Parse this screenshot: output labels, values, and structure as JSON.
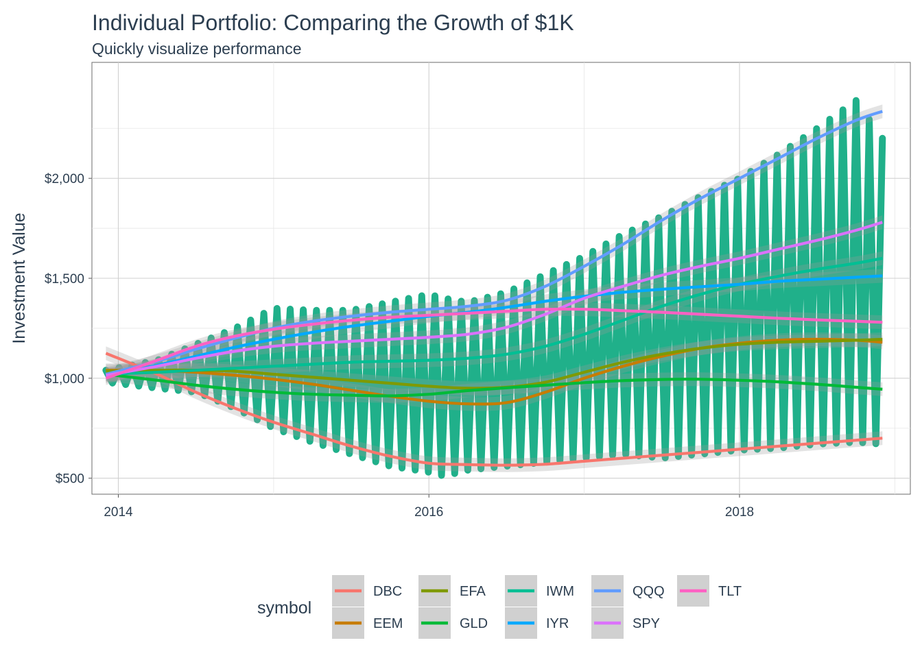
{
  "chart_data": {
    "type": "line",
    "title": "Individual Portfolio: Comparing the Growth of $1K",
    "subtitle": "Quickly visualize performance",
    "xlabel": "",
    "ylabel": "Investment Value",
    "xlim": [
      2013.83,
      2019.1
    ],
    "ylim": [
      420,
      2580
    ],
    "x_ticks": [
      {
        "value": 2014,
        "label": "2014"
      },
      {
        "value": 2016,
        "label": "2016"
      },
      {
        "value": 2018,
        "label": "2018"
      }
    ],
    "y_ticks": [
      {
        "value": 500,
        "label": "$500"
      },
      {
        "value": 1000,
        "label": "$1,000"
      },
      {
        "value": 1500,
        "label": "$1,500"
      },
      {
        "value": 2000,
        "label": "$2,000"
      }
    ],
    "grid": true,
    "legend_title": "symbol",
    "legend_position": "bottom",
    "raw_series_color": "#20b08a",
    "raw_envelope": {
      "x": [
        2013.92,
        2014.25,
        2014.5,
        2014.75,
        2015.0,
        2015.25,
        2015.5,
        2015.75,
        2016.0,
        2016.1,
        2016.25,
        2016.5,
        2016.75,
        2017.0,
        2017.25,
        2017.5,
        2017.75,
        2018.0,
        2018.25,
        2018.5,
        2018.75,
        2018.92
      ],
      "upper": [
        1040,
        1090,
        1170,
        1250,
        1350,
        1340,
        1340,
        1380,
        1420,
        1400,
        1380,
        1430,
        1520,
        1610,
        1720,
        1810,
        1910,
        2000,
        2120,
        2250,
        2390,
        2200
      ],
      "lower": [
        980,
        950,
        930,
        850,
        750,
        680,
        620,
        560,
        530,
        510,
        540,
        560,
        580,
        600,
        620,
        600,
        620,
        640,
        650,
        670,
        680,
        670
      ]
    },
    "series": [
      {
        "name": "DBC",
        "color": "#f8766d",
        "x": [
          2013.92,
          2014.25,
          2014.5,
          2014.75,
          2015.0,
          2015.25,
          2015.5,
          2015.75,
          2016.0,
          2016.25,
          2016.5,
          2016.75,
          2017.0,
          2017.25,
          2017.5,
          2017.75,
          2018.0,
          2018.25,
          2018.5,
          2018.75,
          2018.92
        ],
        "y": [
          1125,
          1020,
          930,
          850,
          780,
          720,
          660,
          610,
          575,
          568,
          565,
          570,
          585,
          600,
          615,
          630,
          645,
          660,
          675,
          690,
          700
        ]
      },
      {
        "name": "EEM",
        "color": "#c77c00",
        "x": [
          2013.92,
          2014.25,
          2014.5,
          2014.75,
          2015.0,
          2015.25,
          2015.5,
          2015.75,
          2016.0,
          2016.25,
          2016.5,
          2016.75,
          2017.0,
          2017.25,
          2017.5,
          2017.75,
          2018.0,
          2018.25,
          2018.5,
          2018.75,
          2018.92
        ],
        "y": [
          1040,
          1038,
          1030,
          1015,
          995,
          970,
          940,
          910,
          885,
          872,
          878,
          930,
          1000,
          1060,
          1110,
          1150,
          1175,
          1190,
          1195,
          1190,
          1180
        ]
      },
      {
        "name": "EFA",
        "color": "#7f9a00",
        "x": [
          2013.92,
          2014.25,
          2014.5,
          2014.75,
          2015.0,
          2015.25,
          2015.5,
          2015.75,
          2016.0,
          2016.25,
          2016.5,
          2016.75,
          2017.0,
          2017.25,
          2017.5,
          2017.75,
          2018.0,
          2018.25,
          2018.5,
          2018.75,
          2018.92
        ],
        "y": [
          1035,
          1040,
          1040,
          1035,
          1020,
          1005,
          990,
          975,
          960,
          950,
          955,
          980,
          1030,
          1080,
          1120,
          1150,
          1170,
          1180,
          1185,
          1190,
          1195
        ]
      },
      {
        "name": "GLD",
        "color": "#00ba38",
        "x": [
          2013.92,
          2014.25,
          2014.5,
          2014.75,
          2015.0,
          2015.25,
          2015.5,
          2015.75,
          2016.0,
          2016.25,
          2016.5,
          2016.75,
          2017.0,
          2017.25,
          2017.5,
          2017.75,
          2018.0,
          2018.25,
          2018.5,
          2018.75,
          2018.92
        ],
        "y": [
          1020,
          990,
          965,
          945,
          930,
          920,
          915,
          912,
          920,
          938,
          952,
          965,
          978,
          988,
          994,
          995,
          990,
          982,
          970,
          955,
          945
        ]
      },
      {
        "name": "IWM",
        "color": "#00bf94",
        "x": [
          2013.92,
          2014.25,
          2014.5,
          2014.75,
          2015.0,
          2015.25,
          2015.5,
          2015.75,
          2016.0,
          2016.25,
          2016.5,
          2016.75,
          2017.0,
          2017.25,
          2017.5,
          2017.75,
          2018.0,
          2018.25,
          2018.5,
          2018.75,
          2018.92
        ],
        "y": [
          1020,
          1030,
          1040,
          1050,
          1060,
          1070,
          1080,
          1085,
          1090,
          1100,
          1120,
          1160,
          1220,
          1290,
          1360,
          1420,
          1470,
          1510,
          1545,
          1575,
          1600
        ]
      },
      {
        "name": "IYR",
        "color": "#00a9ff",
        "x": [
          2013.92,
          2014.25,
          2014.5,
          2014.75,
          2015.0,
          2015.25,
          2015.5,
          2015.75,
          2016.0,
          2016.25,
          2016.5,
          2016.75,
          2017.0,
          2017.25,
          2017.5,
          2017.75,
          2018.0,
          2018.25,
          2018.5,
          2018.75,
          2018.92
        ],
        "y": [
          1010,
          1065,
          1110,
          1155,
          1195,
          1230,
          1260,
          1285,
          1310,
          1330,
          1355,
          1385,
          1410,
          1430,
          1445,
          1458,
          1470,
          1485,
          1495,
          1505,
          1512
        ]
      },
      {
        "name": "QQQ",
        "color": "#619cff",
        "x": [
          2013.92,
          2014.25,
          2014.5,
          2014.75,
          2015.0,
          2015.25,
          2015.5,
          2015.75,
          2016.0,
          2016.25,
          2016.5,
          2016.75,
          2017.0,
          2017.25,
          2017.5,
          2017.75,
          2018.0,
          2018.25,
          2018.5,
          2018.75,
          2018.92
        ],
        "y": [
          1020,
          1085,
          1145,
          1200,
          1250,
          1285,
          1310,
          1330,
          1345,
          1360,
          1390,
          1460,
          1560,
          1670,
          1790,
          1900,
          2000,
          2100,
          2200,
          2290,
          2335
        ]
      },
      {
        "name": "SPY",
        "color": "#db72fb",
        "x": [
          2013.92,
          2014.25,
          2014.5,
          2014.75,
          2015.0,
          2015.25,
          2015.5,
          2015.75,
          2016.0,
          2016.25,
          2016.5,
          2016.75,
          2017.0,
          2017.25,
          2017.5,
          2017.75,
          2018.0,
          2018.25,
          2018.5,
          2018.75,
          2018.92
        ],
        "y": [
          1015,
          1060,
          1100,
          1135,
          1160,
          1175,
          1185,
          1195,
          1205,
          1220,
          1255,
          1320,
          1400,
          1460,
          1515,
          1560,
          1600,
          1645,
          1690,
          1740,
          1780
        ]
      },
      {
        "name": "TLT",
        "color": "#ff61c3",
        "x": [
          2013.92,
          2014.25,
          2014.5,
          2014.75,
          2015.0,
          2015.25,
          2015.5,
          2015.75,
          2016.0,
          2016.25,
          2016.5,
          2016.75,
          2017.0,
          2017.25,
          2017.5,
          2017.75,
          2018.0,
          2018.25,
          2018.5,
          2018.75,
          2018.92
        ],
        "y": [
          1000,
          1090,
          1160,
          1210,
          1245,
          1270,
          1290,
          1305,
          1315,
          1325,
          1335,
          1345,
          1345,
          1338,
          1330,
          1320,
          1310,
          1300,
          1292,
          1285,
          1280
        ]
      }
    ]
  }
}
